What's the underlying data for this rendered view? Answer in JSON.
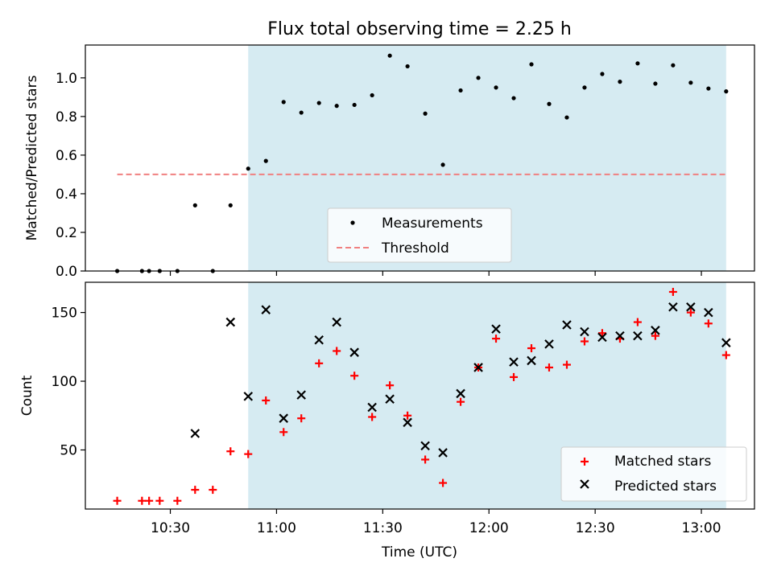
{
  "title": "Flux total observing time = 2.25 h",
  "xlabel": "Time (UTC)",
  "colors": {
    "shade": "#add8e6",
    "measurement": "#000000",
    "threshold": "#f08080",
    "matched": "#ff0000",
    "predicted": "#000000"
  },
  "chart_data": [
    {
      "type": "scatter",
      "title": "Flux total observing time = 2.25 h",
      "ylabel": "Matched/Predicted stars",
      "xlabel": "",
      "xlim": [
        "10:06",
        "13:15"
      ],
      "ylim": [
        0,
        1.17
      ],
      "yticks": [
        "0.0",
        "0.2",
        "0.4",
        "0.6",
        "0.8",
        "1.0"
      ],
      "xticks": [
        "10:30",
        "11:00",
        "11:30",
        "12:00",
        "12:30",
        "13:00"
      ],
      "shaded_span": [
        "10:52",
        "13:07"
      ],
      "legend": {
        "placement": "lower-center",
        "entries": [
          "Measurements",
          "Threshold"
        ]
      },
      "threshold": {
        "name": "Threshold",
        "y": 0.5,
        "x_range": [
          "10:15",
          "13:07"
        ]
      },
      "series": [
        {
          "name": "Measurements",
          "x": [
            "10:15",
            "10:22",
            "10:24",
            "10:27",
            "10:32",
            "10:37",
            "10:42",
            "10:47",
            "10:52",
            "10:57",
            "11:02",
            "11:07",
            "11:12",
            "11:17",
            "11:22",
            "11:27",
            "11:32",
            "11:37",
            "11:42",
            "11:47",
            "11:52",
            "11:57",
            "12:02",
            "12:07",
            "12:12",
            "12:17",
            "12:22",
            "12:27",
            "12:32",
            "12:37",
            "12:42",
            "12:47",
            "12:52",
            "12:57",
            "13:02",
            "13:07"
          ],
          "y": [
            0.0,
            0.0,
            0.0,
            0.0,
            0.0,
            0.34,
            0.0,
            0.34,
            0.53,
            0.57,
            0.875,
            0.82,
            0.87,
            0.855,
            0.86,
            0.91,
            1.115,
            1.06,
            0.815,
            0.55,
            0.935,
            1.0,
            0.95,
            0.895,
            1.07,
            0.865,
            0.795,
            0.95,
            1.02,
            0.98,
            1.075,
            0.97,
            1.065,
            0.975,
            0.945,
            0.93
          ]
        }
      ]
    },
    {
      "type": "scatter",
      "ylabel": "Count",
      "xlabel": "Time (UTC)",
      "xlim": [
        "10:06",
        "13:15"
      ],
      "ylim": [
        7,
        172
      ],
      "yticks": [
        "50",
        "100",
        "150"
      ],
      "xticks": [
        "10:30",
        "11:00",
        "11:30",
        "12:00",
        "12:30",
        "13:00"
      ],
      "shaded_span": [
        "10:52",
        "13:07"
      ],
      "legend": {
        "placement": "lower-right",
        "entries": [
          "Matched stars",
          "Predicted stars"
        ]
      },
      "series": [
        {
          "name": "Matched stars",
          "x": [
            "10:15",
            "10:22",
            "10:24",
            "10:27",
            "10:32",
            "10:37",
            "10:42",
            "10:47",
            "10:52",
            "10:57",
            "11:02",
            "11:07",
            "11:12",
            "11:17",
            "11:22",
            "11:27",
            "11:32",
            "11:37",
            "11:42",
            "11:47",
            "11:52",
            "11:57",
            "12:02",
            "12:07",
            "12:12",
            "12:17",
            "12:22",
            "12:27",
            "12:32",
            "12:37",
            "12:42",
            "12:47",
            "12:52",
            "12:57",
            "13:02",
            "13:07"
          ],
          "y": [
            13,
            13,
            13,
            13,
            13,
            21,
            21,
            49,
            47,
            86,
            63,
            73,
            113,
            122,
            104,
            74,
            97,
            75,
            43,
            26,
            85,
            110,
            131,
            103,
            124,
            110,
            112,
            129,
            135,
            131,
            143,
            133,
            165,
            150,
            142,
            119
          ]
        },
        {
          "name": "Predicted stars",
          "x": [
            "10:37",
            "10:47",
            "10:52",
            "10:57",
            "11:02",
            "11:07",
            "11:12",
            "11:17",
            "11:22",
            "11:27",
            "11:32",
            "11:37",
            "11:42",
            "11:47",
            "11:52",
            "11:57",
            "12:02",
            "12:07",
            "12:12",
            "12:17",
            "12:22",
            "12:27",
            "12:32",
            "12:37",
            "12:42",
            "12:47",
            "12:52",
            "12:57",
            "13:02",
            "13:07"
          ],
          "y": [
            62,
            143,
            89,
            152,
            73,
            90,
            130,
            143,
            121,
            81,
            87,
            70,
            53,
            48,
            91,
            110,
            138,
            114,
            115,
            127,
            141,
            136,
            132,
            133,
            133,
            137,
            154,
            154,
            150,
            128
          ]
        }
      ]
    }
  ]
}
